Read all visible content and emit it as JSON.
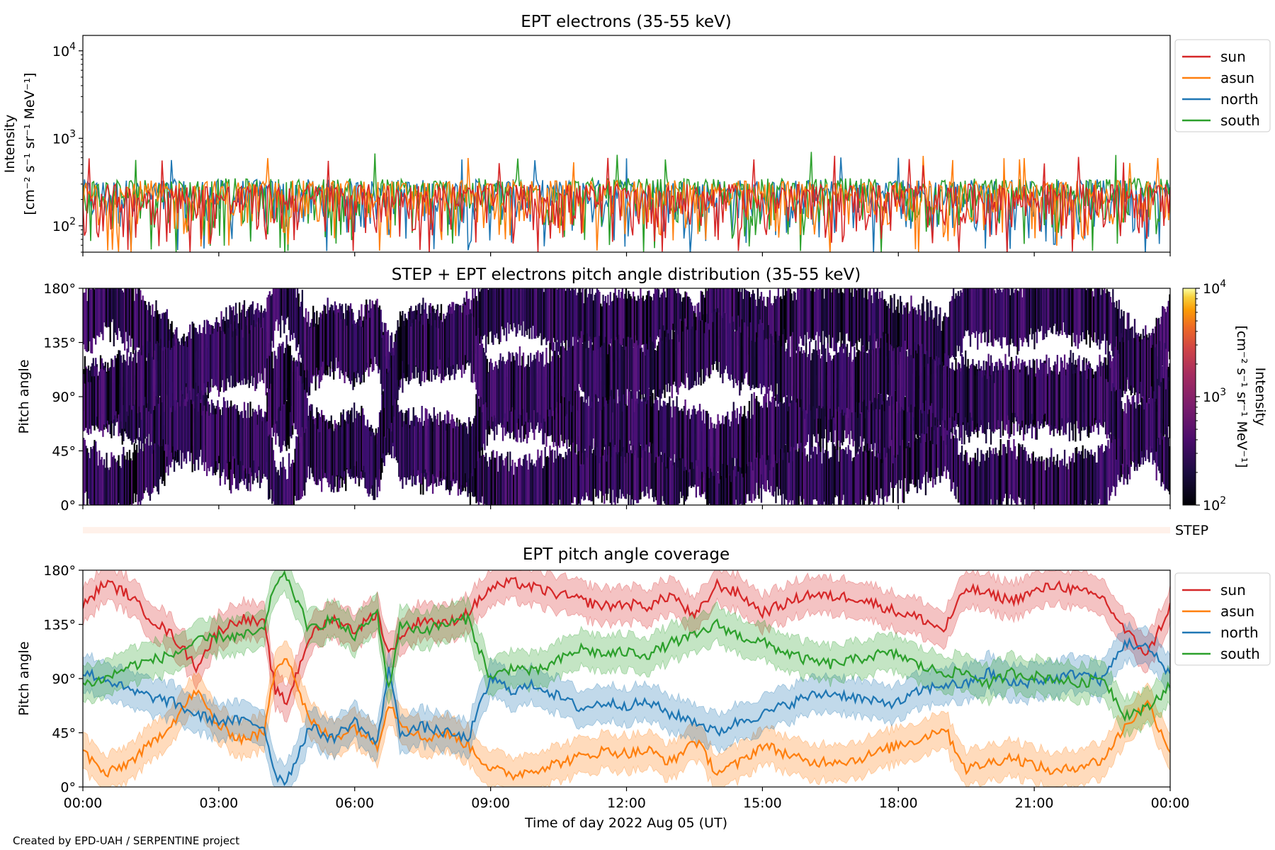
{
  "credit": "Created by EPD-UAH / SERPENTINE project",
  "x_axis": {
    "label": "Time of day 2022 Aug 05 (UT)",
    "ticks": [
      "00:00",
      "03:00",
      "06:00",
      "09:00",
      "12:00",
      "15:00",
      "18:00",
      "21:00",
      "00:00"
    ],
    "range_hours": [
      0,
      24
    ]
  },
  "series_colors": {
    "sun": "#d62728",
    "asun": "#ff7f0e",
    "north": "#1f77b4",
    "south": "#2ca02c"
  },
  "chart_data": [
    {
      "panel": "intensity",
      "type": "line",
      "title": "EPT electrons (35-55 keV)",
      "ylabel": [
        "Intensity",
        "[cm⁻² s⁻¹ sr⁻¹ MeV⁻¹]"
      ],
      "yscale": "log",
      "ylim": [
        50,
        15000
      ],
      "yticks": [
        {
          "base": "10",
          "exp": "2",
          "value": 100
        },
        {
          "base": "10",
          "exp": "3",
          "value": 1000
        },
        {
          "base": "10",
          "exp": "4",
          "value": 10000
        }
      ],
      "legend": {
        "placement": "outside-right",
        "entries": [
          "sun",
          "asun",
          "north",
          "south"
        ]
      },
      "series": [
        {
          "name": "sun",
          "typical_range": [
            50,
            300
          ],
          "peak": 640
        },
        {
          "name": "asun",
          "typical_range": [
            50,
            330
          ],
          "peak": 650
        },
        {
          "name": "north",
          "typical_range": [
            50,
            340
          ],
          "peak": 680
        },
        {
          "name": "south",
          "typical_range": [
            50,
            350
          ],
          "peak": 750
        }
      ]
    },
    {
      "panel": "pad",
      "type": "heatmap",
      "title": "STEP + EPT electrons pitch angle distribution (35-55 keV)",
      "ylabel": "Pitch angle",
      "ylim": [
        0,
        180
      ],
      "yticks": [
        "0°",
        "45°",
        "90°",
        "135°",
        "180°"
      ],
      "colorbar": {
        "label": [
          "Intensity",
          "[cm⁻² s⁻¹ sr⁻¹ MeV⁻¹]"
        ],
        "scale": "log",
        "range": [
          100,
          10000
        ],
        "ticks": [
          {
            "base": "10",
            "exp": "2"
          },
          {
            "base": "10",
            "exp": "3"
          },
          {
            "base": "10",
            "exp": "4"
          }
        ]
      }
    },
    {
      "panel": "step",
      "type": "heatmap",
      "label": "STEP"
    },
    {
      "panel": "coverage",
      "type": "line",
      "title": "EPT pitch angle coverage",
      "ylabel": "Pitch angle",
      "ylim": [
        0,
        180
      ],
      "yticks": [
        "0°",
        "45°",
        "90°",
        "135°",
        "180°"
      ],
      "legend": {
        "placement": "outside-right",
        "entries": [
          "sun",
          "asun",
          "north",
          "south"
        ]
      },
      "x_hours": [
        0,
        0.5,
        1,
        1.5,
        2,
        2.5,
        3,
        3.5,
        4,
        4.25,
        4.5,
        5,
        5.5,
        6,
        6.5,
        6.75,
        7,
        7.5,
        8,
        8.5,
        9,
        9.5,
        10,
        10.5,
        11,
        11.5,
        12,
        12.5,
        13,
        13.5,
        14,
        14.5,
        15,
        15.5,
        16,
        16.5,
        17,
        17.5,
        18,
        18.5,
        19,
        19.5,
        20,
        20.5,
        21,
        21.5,
        22,
        22.5,
        23,
        23.5,
        24
      ],
      "series": [
        {
          "name": "sun",
          "band_halfwidth": 15,
          "values": [
            150,
            170,
            160,
            140,
            125,
            100,
            130,
            140,
            135,
            80,
            70,
            125,
            140,
            130,
            145,
            110,
            125,
            140,
            135,
            145,
            165,
            170,
            165,
            160,
            155,
            150,
            152,
            150,
            160,
            140,
            168,
            160,
            145,
            152,
            160,
            158,
            158,
            152,
            145,
            140,
            130,
            165,
            160,
            155,
            162,
            168,
            162,
            158,
            130,
            110,
            150
          ]
        },
        {
          "name": "asun",
          "band_halfwidth": 15,
          "values": [
            30,
            10,
            20,
            35,
            55,
            80,
            50,
            40,
            45,
            100,
            110,
            55,
            40,
            50,
            35,
            70,
            55,
            40,
            45,
            35,
            15,
            10,
            15,
            20,
            25,
            30,
            28,
            30,
            20,
            40,
            12,
            20,
            35,
            28,
            20,
            22,
            22,
            28,
            35,
            40,
            50,
            15,
            20,
            25,
            18,
            12,
            18,
            22,
            50,
            70,
            30
          ]
        },
        {
          "name": "north",
          "band_halfwidth": 15,
          "values": [
            95,
            90,
            80,
            75,
            70,
            60,
            55,
            55,
            50,
            10,
            5,
            50,
            40,
            55,
            35,
            100,
            45,
            50,
            45,
            40,
            90,
            80,
            85,
            75,
            65,
            70,
            68,
            70,
            60,
            55,
            45,
            55,
            60,
            68,
            75,
            78,
            75,
            70,
            70,
            80,
            85,
            85,
            95,
            85,
            88,
            90,
            95,
            88,
            120,
            115,
            95
          ]
        },
        {
          "name": "south",
          "band_halfwidth": 15,
          "values": [
            85,
            90,
            100,
            105,
            110,
            120,
            125,
            125,
            130,
            170,
            175,
            130,
            140,
            125,
            145,
            80,
            135,
            130,
            135,
            140,
            90,
            100,
            95,
            105,
            115,
            110,
            112,
            110,
            120,
            125,
            135,
            125,
            120,
            112,
            105,
            102,
            105,
            110,
            110,
            100,
            95,
            95,
            85,
            95,
            92,
            90,
            85,
            92,
            60,
            65,
            85
          ]
        }
      ]
    }
  ]
}
